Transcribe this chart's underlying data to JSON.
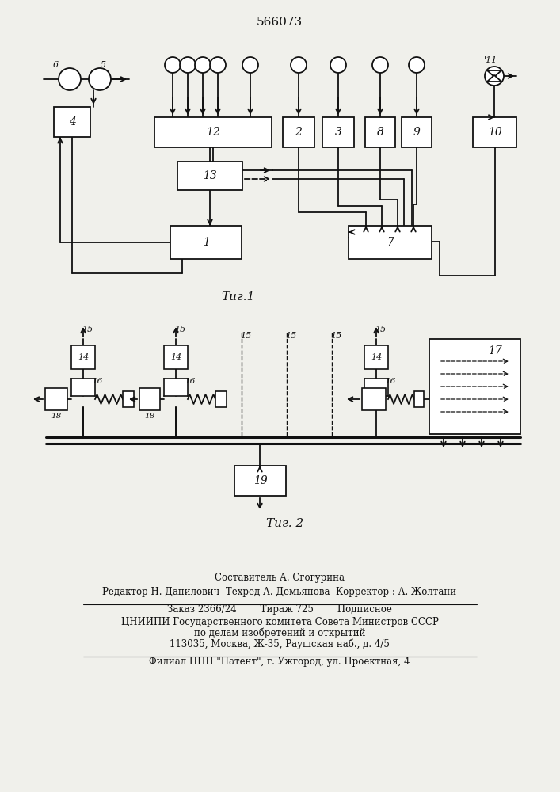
{
  "title": "566073",
  "fig1_caption": "Τиг.1",
  "fig2_caption": "Τиг. 2",
  "footer_lines": [
    "Составитель А. Сгогурина",
    "Редактор Н. Данилович  Техред А. Демьянова  Корректор : А. Жолтани",
    "Заказ 2366/24        Тираж 725        Подписное",
    "ЦНИИПИ Государственного комитета Совета Министров СССР",
    "по делам изобретений и открытий",
    "113035, Москва, Ж-35, Раушская наб., д. 4/5",
    "Филиал ППП \"Патент\", г. Ужгород, ул. Проектная, 4"
  ],
  "bg_color": "#f0f0eb",
  "line_color": "#111111",
  "lw": 1.3
}
